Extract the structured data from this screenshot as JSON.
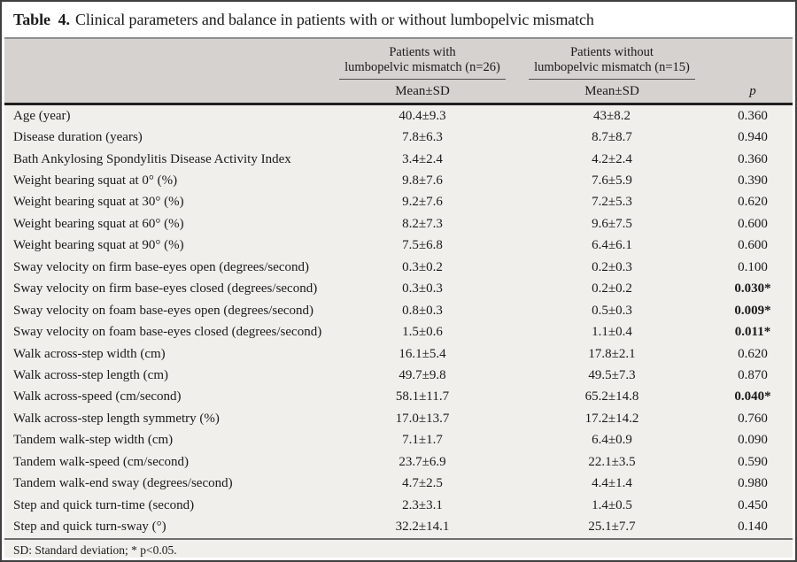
{
  "title": {
    "label": "Table  4.",
    "text": "Clinical parameters and balance in patients with or without lumbopelvic mismatch"
  },
  "table": {
    "group_headers": [
      "Patients with\nlumbopelvic mismatch (n=26)",
      "Patients without\nlumbopelvic mismatch (n=15)"
    ],
    "subheaders": {
      "with_col": "Mean±SD",
      "without_col": "Mean±SD",
      "p_col": "p"
    },
    "rows": [
      {
        "parameter": "Age (year)",
        "with_mismatch": "40.4±9.3",
        "without_mismatch": "43±8.2",
        "p": "0.360",
        "significant": false
      },
      {
        "parameter": "Disease duration (years)",
        "with_mismatch": "7.8±6.3",
        "without_mismatch": "8.7±8.7",
        "p": "0.940",
        "significant": false
      },
      {
        "parameter": "Bath Ankylosing Spondylitis Disease Activity Index",
        "with_mismatch": "3.4±2.4",
        "without_mismatch": "4.2±2.4",
        "p": "0.360",
        "significant": false
      },
      {
        "parameter": "Weight bearing squat at 0° (%)",
        "with_mismatch": "9.8±7.6",
        "without_mismatch": "7.6±5.9",
        "p": "0.390",
        "significant": false
      },
      {
        "parameter": "Weight bearing squat at 30° (%)",
        "with_mismatch": "9.2±7.6",
        "without_mismatch": "7.2±5.3",
        "p": "0.620",
        "significant": false
      },
      {
        "parameter": "Weight bearing squat at 60° (%)",
        "with_mismatch": "8.2±7.3",
        "without_mismatch": "9.6±7.5",
        "p": "0.600",
        "significant": false
      },
      {
        "parameter": "Weight bearing squat at 90° (%)",
        "with_mismatch": "7.5±6.8",
        "without_mismatch": "6.4±6.1",
        "p": "0.600",
        "significant": false
      },
      {
        "parameter": "Sway velocity on firm base-eyes open (degrees/second)",
        "with_mismatch": "0.3±0.2",
        "without_mismatch": "0.2±0.3",
        "p": "0.100",
        "significant": false
      },
      {
        "parameter": "Sway velocity on firm base-eyes closed (degrees/second)",
        "with_mismatch": "0.3±0.3",
        "without_mismatch": "0.2±0.2",
        "p": "0.030*",
        "significant": true
      },
      {
        "parameter": "Sway velocity on foam base-eyes open (degrees/second)",
        "with_mismatch": "0.8±0.3",
        "without_mismatch": "0.5±0.3",
        "p": "0.009*",
        "significant": true
      },
      {
        "parameter": "Sway velocity on foam base-eyes closed (degrees/second)",
        "with_mismatch": "1.5±0.6",
        "without_mismatch": "1.1±0.4",
        "p": "0.011*",
        "significant": true
      },
      {
        "parameter": "Walk across-step width (cm)",
        "with_mismatch": "16.1±5.4",
        "without_mismatch": "17.8±2.1",
        "p": "0.620",
        "significant": false
      },
      {
        "parameter": "Walk across-step length (cm)",
        "with_mismatch": "49.7±9.8",
        "without_mismatch": "49.5±7.3",
        "p": "0.870",
        "significant": false
      },
      {
        "parameter": "Walk across-speed (cm/second)",
        "with_mismatch": "58.1±11.7",
        "without_mismatch": "65.2±14.8",
        "p": "0.040*",
        "significant": true
      },
      {
        "parameter": "Walk across-step length symmetry (%)",
        "with_mismatch": "17.0±13.7",
        "without_mismatch": "17.2±14.2",
        "p": "0.760",
        "significant": false
      },
      {
        "parameter": "Tandem walk-step width (cm)",
        "with_mismatch": "7.1±1.7",
        "without_mismatch": "6.4±0.9",
        "p": "0.090",
        "significant": false
      },
      {
        "parameter": "Tandem walk-speed (cm/second)",
        "with_mismatch": "23.7±6.9",
        "without_mismatch": "22.1±3.5",
        "p": "0.590",
        "significant": false
      },
      {
        "parameter": "Tandem walk-end sway (degrees/second)",
        "with_mismatch": "4.7±2.5",
        "without_mismatch": "4.4±1.4",
        "p": "0.980",
        "significant": false
      },
      {
        "parameter": "Step and quick turn-time (second)",
        "with_mismatch": "2.3±3.1",
        "without_mismatch": "1.4±0.5",
        "p": "0.450",
        "significant": false
      },
      {
        "parameter": "Step and quick turn-sway (°)",
        "with_mismatch": "32.2±14.1",
        "without_mismatch": "25.1±7.7",
        "p": "0.140",
        "significant": false
      }
    ]
  },
  "footnote": "SD: Standard deviation; * p<0.05.",
  "colors": {
    "header_bg": "#d5d2cf",
    "body_bg": "#f1efec",
    "frame_border": "#3f3f3f",
    "heavy_rule": "#1f1f1f"
  }
}
